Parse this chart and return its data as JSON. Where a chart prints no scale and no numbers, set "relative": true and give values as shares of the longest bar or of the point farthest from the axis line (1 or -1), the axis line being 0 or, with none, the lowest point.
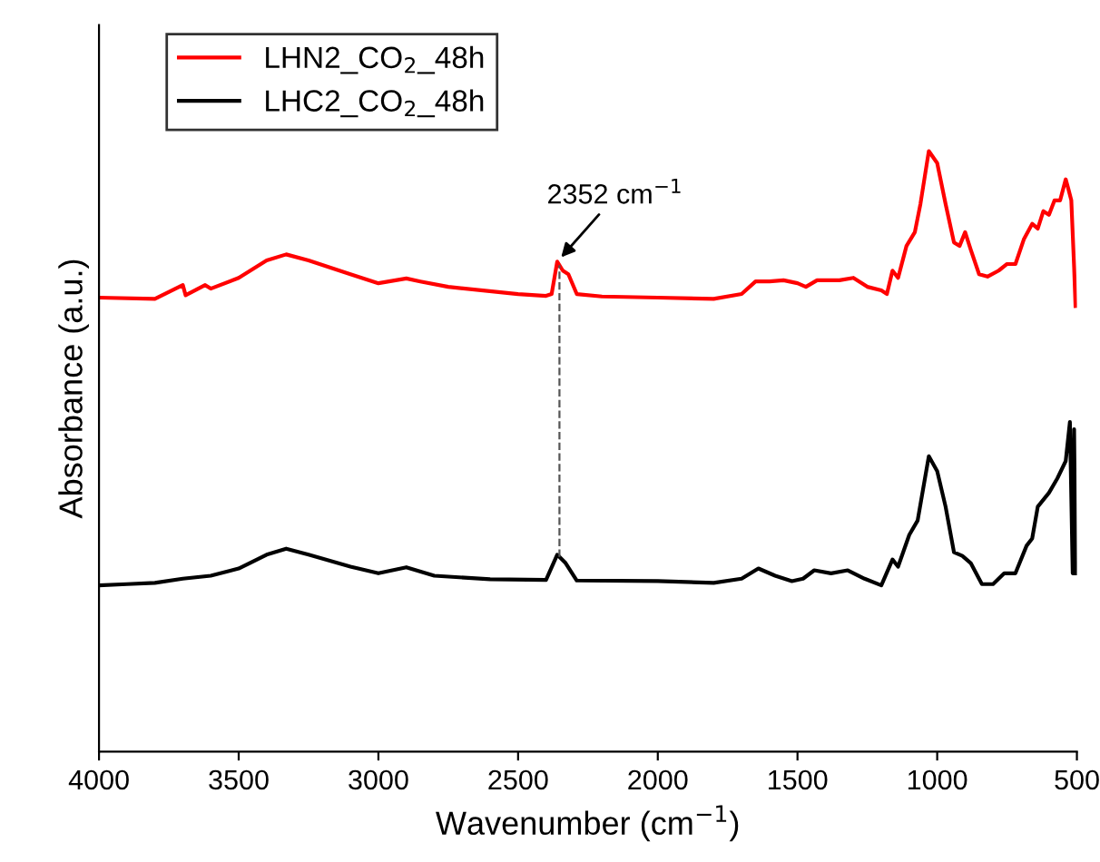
{
  "chart_data": {
    "type": "line",
    "relative": true,
    "xlabel": "Wavenumber (cm$^{−1}$)",
    "ylabel": "Absorbance (a.u.)",
    "xlim": [
      4000,
      500
    ],
    "xticks": [
      4000,
      3500,
      3000,
      2500,
      2000,
      1500,
      1000,
      500
    ],
    "legend": "top left",
    "grid": false,
    "tick_labels": "x",
    "series": [
      {
        "name": "LHN2_CO$_{2}$_48h",
        "color": "#ff0000",
        "x": [
          4000,
          3800,
          3700,
          3690,
          3620,
          3600,
          3500,
          3400,
          3330,
          3250,
          3100,
          3000,
          2900,
          2850,
          2750,
          2500,
          2400,
          2380,
          2360,
          2340,
          2320,
          2290,
          2200,
          2000,
          1800,
          1700,
          1650,
          1600,
          1550,
          1500,
          1470,
          1430,
          1350,
          1300,
          1250,
          1200,
          1180,
          1160,
          1140,
          1110,
          1080,
          1060,
          1030,
          1000,
          970,
          940,
          920,
          900,
          880,
          850,
          820,
          780,
          750,
          720,
          690,
          660,
          640,
          620,
          600,
          580,
          560,
          540,
          530,
          520,
          510,
          505
        ],
        "values": [
          0.756,
          0.754,
          0.777,
          0.76,
          0.777,
          0.771,
          0.789,
          0.818,
          0.828,
          0.818,
          0.795,
          0.78,
          0.788,
          0.783,
          0.774,
          0.762,
          0.759,
          0.762,
          0.816,
          0.801,
          0.795,
          0.762,
          0.758,
          0.756,
          0.754,
          0.762,
          0.783,
          0.783,
          0.785,
          0.78,
          0.774,
          0.785,
          0.785,
          0.789,
          0.774,
          0.768,
          0.762,
          0.801,
          0.789,
          0.842,
          0.865,
          0.912,
          1.0,
          0.98,
          0.912,
          0.848,
          0.842,
          0.865,
          0.836,
          0.795,
          0.791,
          0.801,
          0.812,
          0.812,
          0.853,
          0.879,
          0.871,
          0.9,
          0.894,
          0.918,
          0.918,
          0.953,
          0.936,
          0.918,
          0.807,
          0.742
        ]
      },
      {
        "name": "LHC2_CO$_{2}$_48h",
        "color": "#000000",
        "x": [
          4000,
          3900,
          3800,
          3700,
          3600,
          3500,
          3400,
          3330,
          3250,
          3100,
          3000,
          2900,
          2800,
          2600,
          2400,
          2360,
          2330,
          2290,
          2000,
          1800,
          1700,
          1640,
          1580,
          1520,
          1480,
          1440,
          1380,
          1320,
          1260,
          1200,
          1160,
          1140,
          1100,
          1070,
          1030,
          1000,
          970,
          940,
          910,
          880,
          840,
          800,
          760,
          720,
          680,
          660,
          640,
          600,
          570,
          540,
          525,
          515,
          510,
          505
        ],
        "values": [
          0.277,
          0.279,
          0.281,
          0.288,
          0.293,
          0.305,
          0.328,
          0.338,
          0.328,
          0.308,
          0.297,
          0.307,
          0.293,
          0.287,
          0.286,
          0.328,
          0.314,
          0.285,
          0.284,
          0.281,
          0.288,
          0.305,
          0.293,
          0.284,
          0.288,
          0.302,
          0.297,
          0.302,
          0.288,
          0.277,
          0.32,
          0.308,
          0.361,
          0.385,
          0.492,
          0.467,
          0.408,
          0.332,
          0.326,
          0.314,
          0.279,
          0.279,
          0.297,
          0.297,
          0.343,
          0.355,
          0.408,
          0.431,
          0.455,
          0.484,
          0.549,
          0.297,
          0.537,
          0.297
        ]
      }
    ],
    "ref_lines": [
      {
        "axis": "x",
        "value": 2352,
        "line_style": "dashed",
        "color": "#555555"
      }
    ],
    "annotations": [
      {
        "text": "2352 cm$^{−1}$",
        "x": 2352,
        "y": 0.82
      }
    ]
  }
}
